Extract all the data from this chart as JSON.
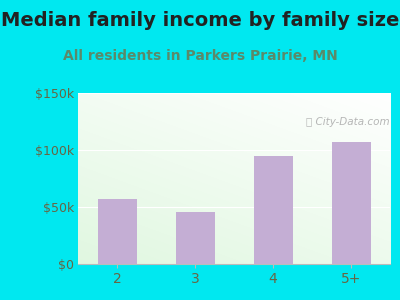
{
  "title": "Median family income by family size",
  "subtitle": "All residents in Parkers Prairie, MN",
  "categories": [
    "2",
    "3",
    "4",
    "5+"
  ],
  "values": [
    57000,
    46000,
    95000,
    107000
  ],
  "bar_color": "#c4aed4",
  "ylim": [
    0,
    150000
  ],
  "yticks": [
    0,
    50000,
    100000,
    150000
  ],
  "ytick_labels": [
    "$0",
    "$50k",
    "$100k",
    "$150k"
  ],
  "title_fontsize": 14,
  "subtitle_fontsize": 10,
  "title_color": "#222222",
  "subtitle_color": "#5a8a6a",
  "tick_color": "#666644",
  "background_outer": "#00e8f0",
  "watermark": "City-Data.com"
}
